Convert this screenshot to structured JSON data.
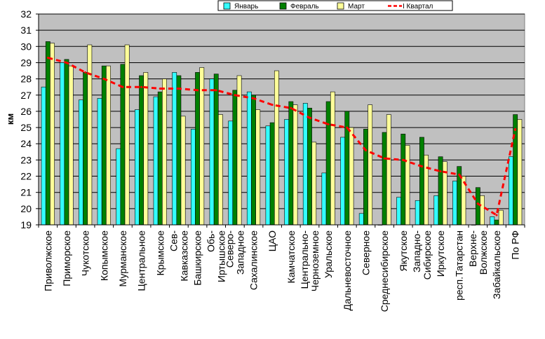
{
  "chart_data": {
    "type": "bar",
    "ylabel": "км",
    "ylim": [
      19,
      32
    ],
    "yticks": [
      19,
      20,
      21,
      22,
      23,
      24,
      25,
      26,
      27,
      28,
      29,
      30,
      31,
      32
    ],
    "grid": true,
    "legend_position": "top",
    "categories": [
      "Приволжское",
      "Приморское",
      "Чукотское",
      "Копымское",
      "Мурманское",
      "Центральное",
      "Крымское",
      "Сев-Кавказское",
      "Башкирское",
      "Обь-Иртышское",
      "Северо-Западное",
      "Сахалинское",
      "ЦАО",
      "Камчатское",
      "Центрально-Черноземное",
      "Уральское",
      "Дальневосточное",
      "Северное",
      "Среднесибирское",
      "Якутское",
      "Западно-Сибирское",
      "Иркутское",
      "респ.Татарстан",
      "Верхне-Волжское",
      "Забайкальское",
      "По РФ"
    ],
    "category_lines": [
      [
        "Приволжское"
      ],
      [
        "Приморское"
      ],
      [
        "Чукотское"
      ],
      [
        "Копымское"
      ],
      [
        "Мурманское"
      ],
      [
        "Центральное"
      ],
      [
        "Крымское"
      ],
      [
        "Сев-",
        "Кавказское"
      ],
      [
        "Башкирское"
      ],
      [
        "Обь-",
        "Иртышское"
      ],
      [
        "Северо-",
        "Западное"
      ],
      [
        "Сахалинское"
      ],
      [
        "ЦАО"
      ],
      [
        "Камчатское"
      ],
      [
        "Центрально-",
        "Черноземное"
      ],
      [
        "Уральское"
      ],
      [
        "Дальневосточное"
      ],
      [
        "Северное"
      ],
      [
        "Среднесибирское"
      ],
      [
        "Якутское"
      ],
      [
        "Западно-",
        "Сибирское"
      ],
      [
        "Иркутское"
      ],
      [
        "респ.Татарстан"
      ],
      [
        "Верхне-",
        "Волжское"
      ],
      [
        "Забайкальское"
      ],
      [
        "По РФ"
      ]
    ],
    "series": [
      {
        "name": "Январь",
        "kind": "bar",
        "color": "#33ffff",
        "values": [
          27.5,
          29.0,
          26.7,
          26.8,
          23.7,
          26.1,
          26.9,
          28.4,
          24.9,
          28.0,
          25.4,
          27.2,
          25.1,
          25.5,
          26.5,
          22.2,
          24.4,
          19.7,
          19.0,
          20.7,
          20.5,
          20.8,
          21.7,
          18.9,
          19.5,
          23.2
        ]
      },
      {
        "name": "Февраль",
        "kind": "bar",
        "color": "#008000",
        "values": [
          30.3,
          29.2,
          28.4,
          28.8,
          28.9,
          28.2,
          27.2,
          28.2,
          28.4,
          28.3,
          27.3,
          27.0,
          25.3,
          26.6,
          26.2,
          26.6,
          26.0,
          24.9,
          24.7,
          24.6,
          24.4,
          23.2,
          22.6,
          21.3,
          19.3,
          25.8
        ]
      },
      {
        "name": "Март",
        "kind": "bar",
        "color": "#ffff99",
        "values": [
          30.2,
          28.8,
          30.1,
          28.8,
          30.1,
          28.4,
          28.0,
          25.7,
          28.7,
          25.8,
          28.2,
          26.1,
          28.5,
          26.4,
          24.1,
          27.2,
          25.0,
          26.4,
          25.8,
          23.9,
          23.3,
          22.9,
          22.0,
          20.8,
          19.9,
          25.5
        ]
      },
      {
        "name": "I Квартал",
        "kind": "line",
        "color": "#ff0000",
        "values": [
          29.3,
          29.0,
          28.4,
          28.0,
          27.5,
          27.5,
          27.4,
          27.4,
          27.3,
          27.3,
          27.0,
          26.8,
          26.4,
          26.2,
          25.6,
          25.2,
          25.0,
          23.6,
          23.1,
          23.0,
          22.6,
          22.3,
          22.1,
          20.3,
          19.6,
          24.9
        ]
      }
    ]
  },
  "colors": {
    "plot_background": "#c0c0c0",
    "grid": "#000000",
    "page_background": "#ffffff"
  }
}
